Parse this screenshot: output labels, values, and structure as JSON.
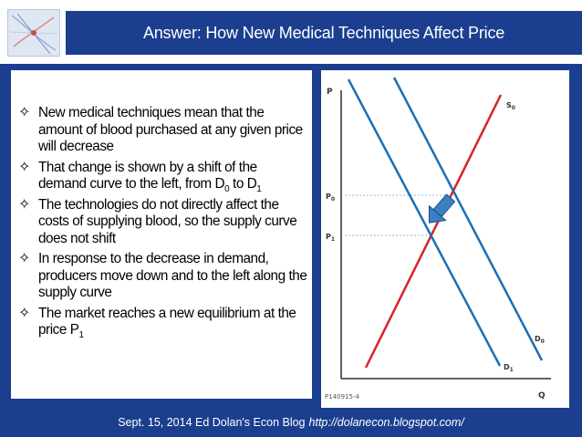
{
  "header": {
    "title": "Answer: How New Medical Techniques Affect Price"
  },
  "bullets": [
    {
      "text": "New medical techniques mean that the amount of blood purchased at any given price will decrease"
    },
    {
      "pre": "That change is shown by a shift of the demand curve to the left, from D",
      "sub1": "0",
      "mid": " to D",
      "sub2": "1"
    },
    {
      "text": "The technologies do not directly affect the costs of supplying blood, so the supply curve does not shift"
    },
    {
      "text": "In response to the decrease in demand, producers move down and to the left along the supply curve"
    },
    {
      "pre": "The market reaches a new equilibrium at the price P",
      "sub1": "1"
    }
  ],
  "chart_data": {
    "type": "line",
    "title": "",
    "xlabel": "Q",
    "ylabel": "P",
    "figure_id": "P140915-4",
    "price_ticks": [
      "P0",
      "P1"
    ],
    "series": [
      {
        "name": "S0",
        "color": "#d8222a",
        "points": [
          [
            0.12,
            0.06
          ],
          [
            0.78,
            0.93
          ]
        ]
      },
      {
        "name": "D0",
        "color": "#1a6fb5",
        "points": [
          [
            0.36,
            0.96
          ],
          [
            0.93,
            0.12
          ]
        ]
      },
      {
        "name": "D1",
        "color": "#1a6fb5",
        "points": [
          [
            0.14,
            0.95
          ],
          [
            0.76,
            0.05
          ]
        ]
      }
    ],
    "shift_arrow": {
      "direction": "down-left",
      "color": "#3b7fc4"
    }
  },
  "footer": {
    "credit": "Sept. 15, 2014 Ed Dolan's Econ Blog",
    "link": "http://dolanecon.blogspot.com/"
  },
  "colors": {
    "background": "#1b3f8e",
    "supply": "#d8222a",
    "demand": "#1a6fb5"
  }
}
